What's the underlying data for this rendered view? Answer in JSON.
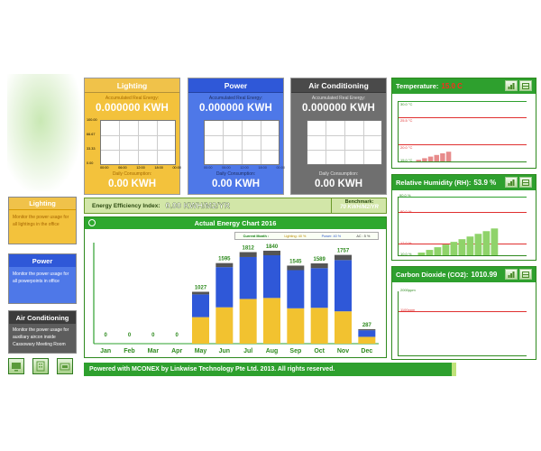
{
  "colors": {
    "lighting": "#f2c230",
    "power": "#2f58d8",
    "aircon": "#555555",
    "green": "#2ea02e",
    "red": "#e03030"
  },
  "meters": [
    {
      "title": "Lighting",
      "accum_label": "Accumulated Real Energy:",
      "accum_value": "0.000000 KWH",
      "daily_label": "Daily Consumption:",
      "daily_value": "0.00 KWH",
      "yticks": [
        "100.00",
        "66.67",
        "33.33",
        "0.00"
      ],
      "xticks": [
        "00:00",
        "06:00",
        "12:00",
        "18:00",
        "00:00"
      ]
    },
    {
      "title": "Power",
      "accum_label": "Accumulated Real Energy:",
      "accum_value": "0.000000 KWH",
      "daily_label": "Daily Consumption:",
      "daily_value": "0.00 KWH",
      "yticks": [
        "",
        "",
        "",
        ""
      ],
      "xticks": [
        "00:00",
        "06:00",
        "12:00",
        "18:00",
        "00:00"
      ]
    },
    {
      "title": "Air Conditioning",
      "accum_label": "Accumulated Real Energy:",
      "accum_value": "0.000000 KWH",
      "daily_label": "Daily Consumption:",
      "daily_value": "0.00 KWH",
      "yticks": [
        "",
        "",
        "",
        ""
      ],
      "xticks": [
        "",
        "",
        "",
        "",
        ""
      ]
    }
  ],
  "efficiency": {
    "label": "Energy Efficiency Index:",
    "value": "0.00 KWH/M2/YR",
    "benchmark_label": "Benchmark:",
    "benchmark_value": "70 KWH/M2/YR"
  },
  "energy_chart": {
    "title": "Actual Energy Chart 2016",
    "legend": {
      "current_month": "Current Month :",
      "lighting": "Lighting: 40 %",
      "power": "Power: 40 %",
      "ac": "AC : 5 %"
    }
  },
  "chart_data": {
    "type": "bar",
    "title": "Actual Energy Chart 2016",
    "categories": [
      "Jan",
      "Feb",
      "Mar",
      "Apr",
      "May",
      "Jun",
      "Jul",
      "Aug",
      "Sep",
      "Oct",
      "Nov",
      "Dec"
    ],
    "totals": [
      0,
      0,
      0,
      0,
      1027,
      1595,
      1812,
      1840,
      1545,
      1589,
      1757,
      287
    ],
    "series": [
      {
        "name": "Lighting",
        "values": [
          0,
          0,
          0,
          0,
          525,
          720,
          885,
          905,
          700,
          710,
          640,
          135
        ]
      },
      {
        "name": "Power",
        "values": [
          0,
          0,
          0,
          0,
          450,
          795,
          830,
          845,
          755,
          785,
          1015,
          130
        ]
      },
      {
        "name": "AC",
        "values": [
          0,
          0,
          0,
          0,
          52,
          80,
          97,
          90,
          90,
          94,
          102,
          22
        ]
      }
    ],
    "ylim": [
      0,
      2000
    ]
  },
  "sidebar": [
    {
      "title": "Lighting",
      "desc": "Monitor the power usage for all lightings in the office"
    },
    {
      "title": "Power",
      "desc": "Monitor the power usage for all powerpoints in office"
    },
    {
      "title": "Air Conditioning",
      "desc": "Monitor the power usage for auxiliary aircon inside Cassowary Meeting Room"
    }
  ],
  "footer": "Powered with MCONEX by Linkwise Technology Pte Ltd. 2013. All rights reserved.",
  "environment": {
    "temperature": {
      "title": "Temperature:",
      "value": "15.0 C",
      "levels": [
        "30.0 °C",
        "25.5 °C",
        "20.0 °C",
        "15.0 °C"
      ],
      "level_fraction": 0.3
    },
    "humidity": {
      "title": "Relative Humidity (RH):",
      "value": "53.9 %",
      "levels": [
        "90.0 %",
        "80.0 %",
        "12.0 %",
        "10.0 %"
      ],
      "level_fraction": 0.55
    },
    "co2": {
      "title": "Carbon Dioxide (CO2):",
      "value": "1010.99",
      "levels": [
        "2000ppm",
        "1100ppm"
      ],
      "level_fraction": 0.5
    }
  }
}
